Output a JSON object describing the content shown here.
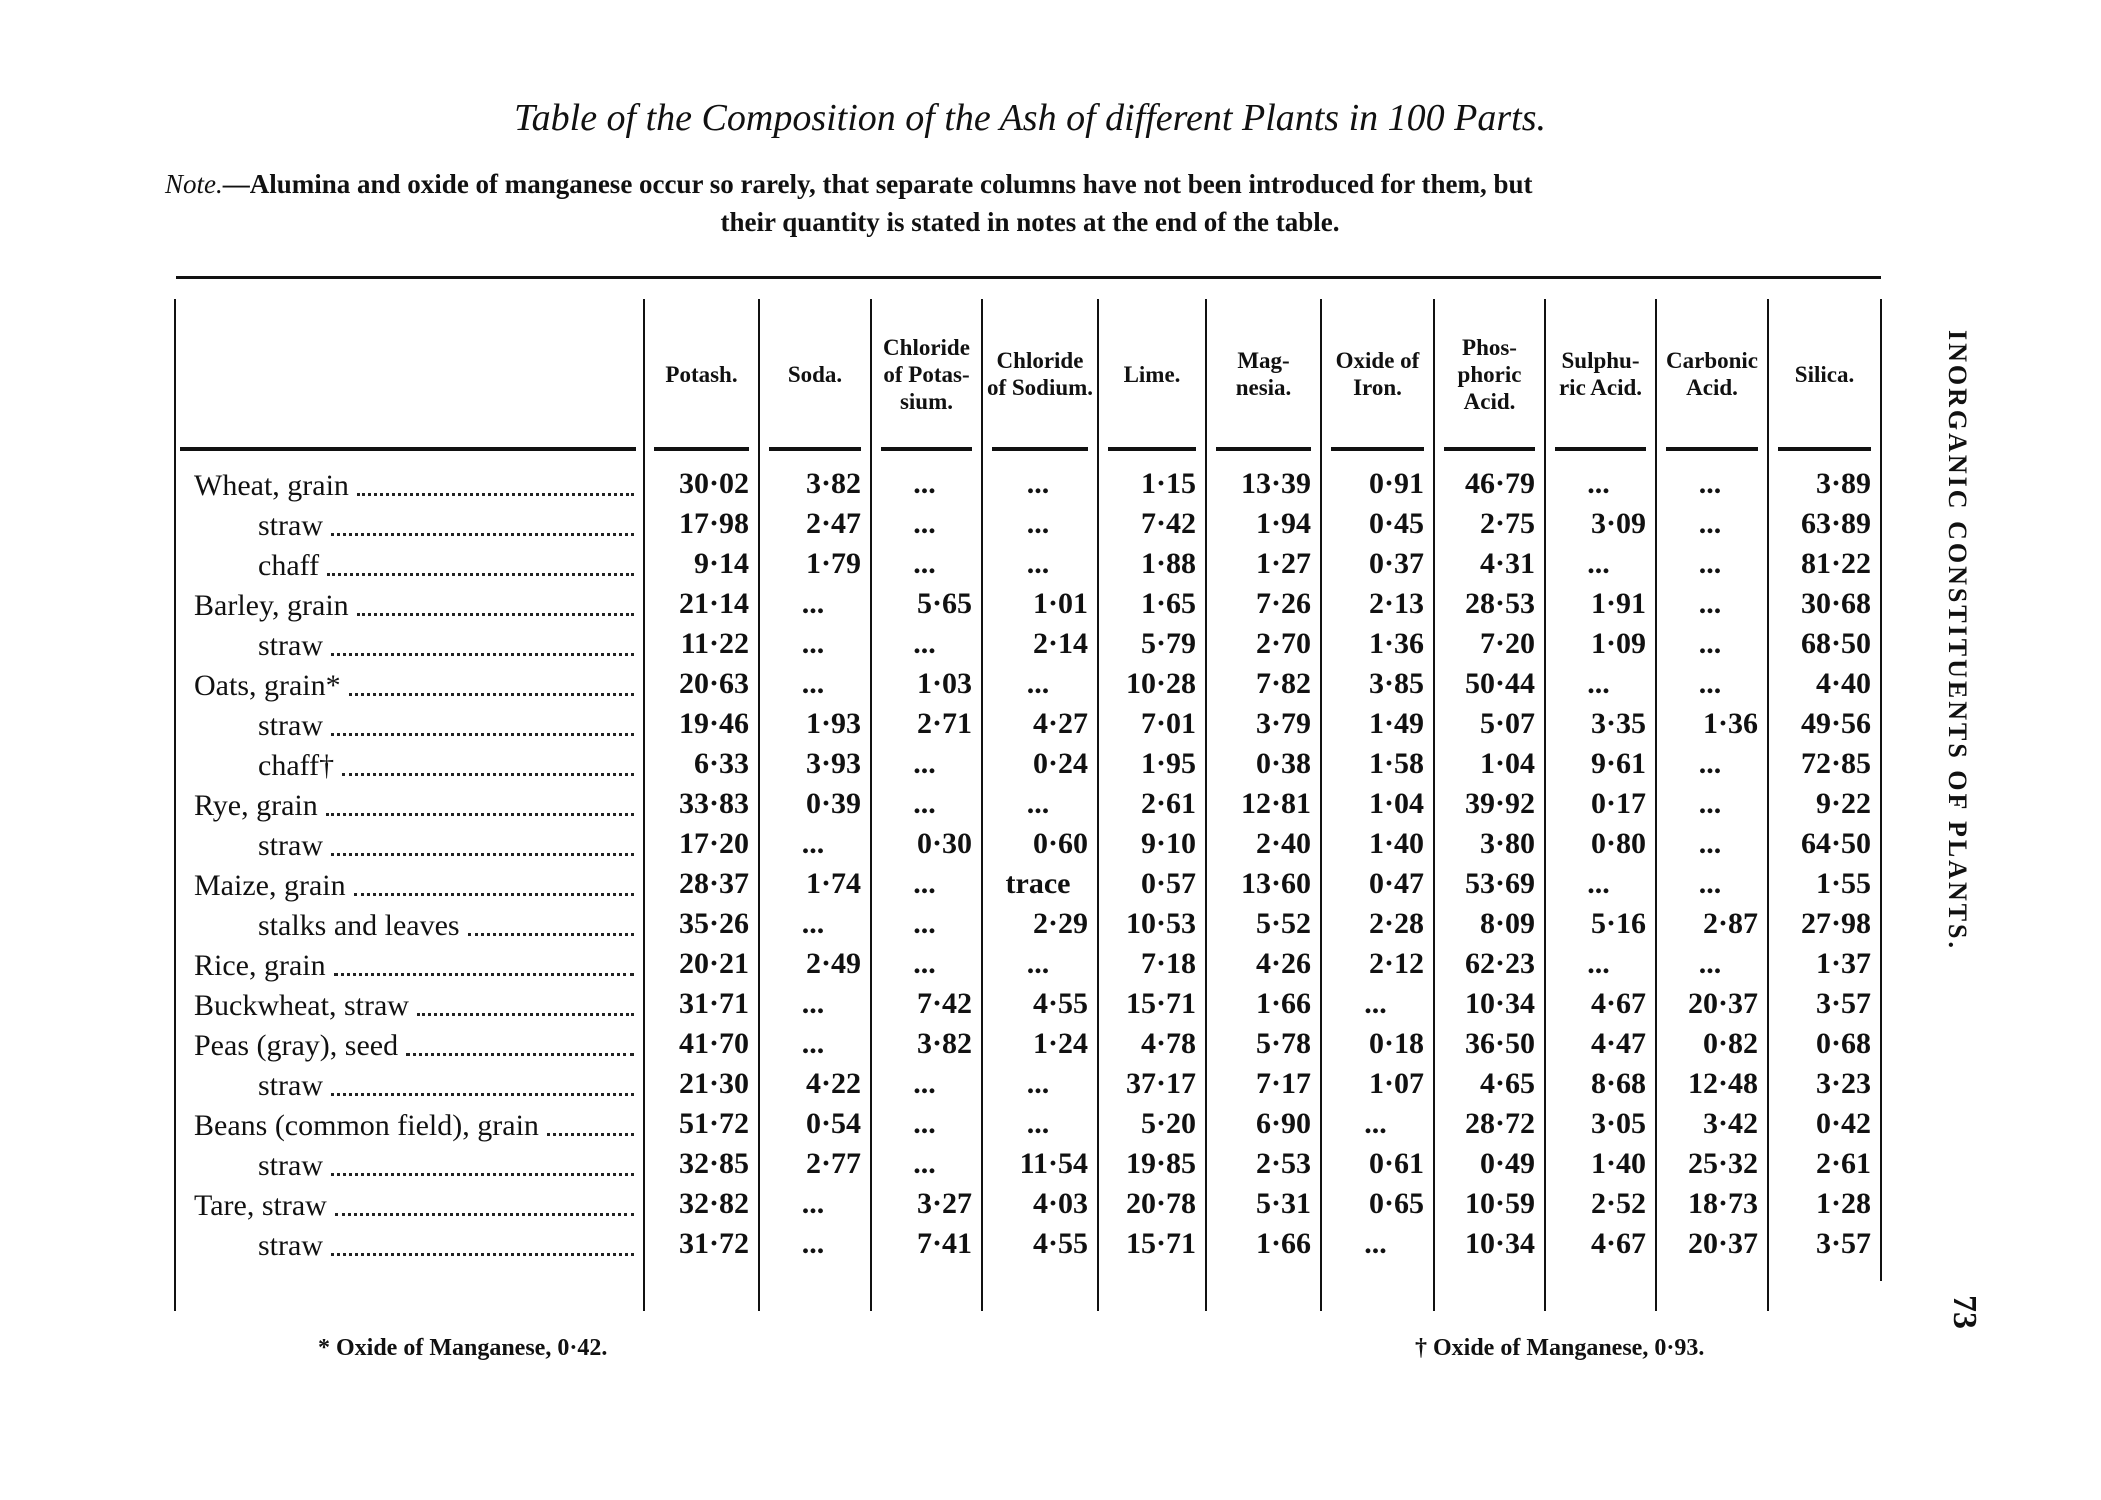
{
  "title": "Table of the Composition of the Ash of different Plants in 100 Parts.",
  "note": {
    "label": "Note.",
    "line1": "—Alumina and oxide of manganese occur so rarely, that separate columns have not been introduced for them, but",
    "line2": "their quantity is stated in notes at the end of the table."
  },
  "columns": [
    "Potash.",
    "Soda.",
    "Chloride of Potas-sium.",
    "Chloride of Sodium.",
    "Lime.",
    "Mag-nesia.",
    "Oxide of Iron.",
    "Phos-phoric Acid.",
    "Sulphu-ric Acid.",
    "Carbonic Acid.",
    "Silica."
  ],
  "rows": [
    {
      "label": "Wheat, grain",
      "indent": false,
      "values": [
        "30·02",
        "3·82",
        "...",
        "...",
        "1·15",
        "13·39",
        "0·91",
        "46·79",
        "...",
        "...",
        "3·89"
      ]
    },
    {
      "label": "straw",
      "indent": true,
      "values": [
        "17·98",
        "2·47",
        "...",
        "...",
        "7·42",
        "1·94",
        "0·45",
        "2·75",
        "3·09",
        "...",
        "63·89"
      ]
    },
    {
      "label": "chaff",
      "indent": true,
      "values": [
        "9·14",
        "1·79",
        "...",
        "...",
        "1·88",
        "1·27",
        "0·37",
        "4·31",
        "...",
        "...",
        "81·22"
      ]
    },
    {
      "label": "Barley, grain",
      "indent": false,
      "values": [
        "21·14",
        "...",
        "5·65",
        "1·01",
        "1·65",
        "7·26",
        "2·13",
        "28·53",
        "1·91",
        "...",
        "30·68"
      ]
    },
    {
      "label": "straw",
      "indent": true,
      "values": [
        "11·22",
        "...",
        "...",
        "2·14",
        "5·79",
        "2·70",
        "1·36",
        "7·20",
        "1·09",
        "...",
        "68·50"
      ]
    },
    {
      "label": "Oats, grain*",
      "indent": false,
      "values": [
        "20·63",
        "...",
        "1·03",
        "...",
        "10·28",
        "7·82",
        "3·85",
        "50·44",
        "...",
        "...",
        "4·40"
      ]
    },
    {
      "label": "straw",
      "indent": true,
      "values": [
        "19·46",
        "1·93",
        "2·71",
        "4·27",
        "7·01",
        "3·79",
        "1·49",
        "5·07",
        "3·35",
        "1·36",
        "49·56"
      ]
    },
    {
      "label": "chaff†",
      "indent": true,
      "values": [
        "6·33",
        "3·93",
        "...",
        "0·24",
        "1·95",
        "0·38",
        "1·58",
        "1·04",
        "9·61",
        "...",
        "72·85"
      ]
    },
    {
      "label": "Rye, grain",
      "indent": false,
      "values": [
        "33·83",
        "0·39",
        "...",
        "...",
        "2·61",
        "12·81",
        "1·04",
        "39·92",
        "0·17",
        "...",
        "9·22"
      ]
    },
    {
      "label": "straw",
      "indent": true,
      "values": [
        "17·20",
        "...",
        "0·30",
        "0·60",
        "9·10",
        "2·40",
        "1·40",
        "3·80",
        "0·80",
        "...",
        "64·50"
      ]
    },
    {
      "label": "Maize, grain",
      "indent": false,
      "values": [
        "28·37",
        "1·74",
        "...",
        "trace",
        "0·57",
        "13·60",
        "0·47",
        "53·69",
        "...",
        "...",
        "1·55"
      ]
    },
    {
      "label": "stalks and leaves",
      "indent": true,
      "values": [
        "35·26",
        "...",
        "...",
        "2·29",
        "10·53",
        "5·52",
        "2·28",
        "8·09",
        "5·16",
        "2·87",
        "27·98"
      ]
    },
    {
      "label": "Rice, grain",
      "indent": false,
      "values": [
        "20·21",
        "2·49",
        "...",
        "...",
        "7·18",
        "4·26",
        "2·12",
        "62·23",
        "...",
        "...",
        "1·37"
      ]
    },
    {
      "label": "Buckwheat, straw",
      "indent": false,
      "values": [
        "31·71",
        "...",
        "7·42",
        "4·55",
        "15·71",
        "1·66",
        "...",
        "10·34",
        "4·67",
        "20·37",
        "3·57"
      ]
    },
    {
      "label": "Peas (gray), seed",
      "indent": false,
      "values": [
        "41·70",
        "...",
        "3·82",
        "1·24",
        "4·78",
        "5·78",
        "0·18",
        "36·50",
        "4·47",
        "0·82",
        "0·68"
      ]
    },
    {
      "label": "straw",
      "indent": true,
      "values": [
        "21·30",
        "4·22",
        "...",
        "...",
        "37·17",
        "7·17",
        "1·07",
        "4·65",
        "8·68",
        "12·48",
        "3·23"
      ]
    },
    {
      "label": "Beans (common field), grain",
      "indent": false,
      "values": [
        "51·72",
        "0·54",
        "...",
        "...",
        "5·20",
        "6·90",
        "...",
        "28·72",
        "3·05",
        "3·42",
        "0·42"
      ]
    },
    {
      "label": "straw",
      "indent": true,
      "values": [
        "32·85",
        "2·77",
        "...",
        "11·54",
        "19·85",
        "2·53",
        "0·61",
        "0·49",
        "1·40",
        "25·32",
        "2·61"
      ]
    },
    {
      "label": "Tare, straw",
      "indent": false,
      "values": [
        "32·82",
        "...",
        "3·27",
        "4·03",
        "20·78",
        "5·31",
        "0·65",
        "10·59",
        "2·52",
        "18·73",
        "1·28"
      ]
    },
    {
      "label": "straw",
      "indent": true,
      "values": [
        "31·72",
        "...",
        "7·41",
        "4·55",
        "15·71",
        "1·66",
        "...",
        "10·34",
        "4·67",
        "20·37",
        "3·57"
      ]
    }
  ],
  "footnotes": {
    "left": "* Oxide of Manganese, 0·42.",
    "right": "† Oxide of Manganese, 0·93."
  },
  "running_head": "INORGANIC CONSTITUENTS OF PLANTS.",
  "page_number": "73"
}
